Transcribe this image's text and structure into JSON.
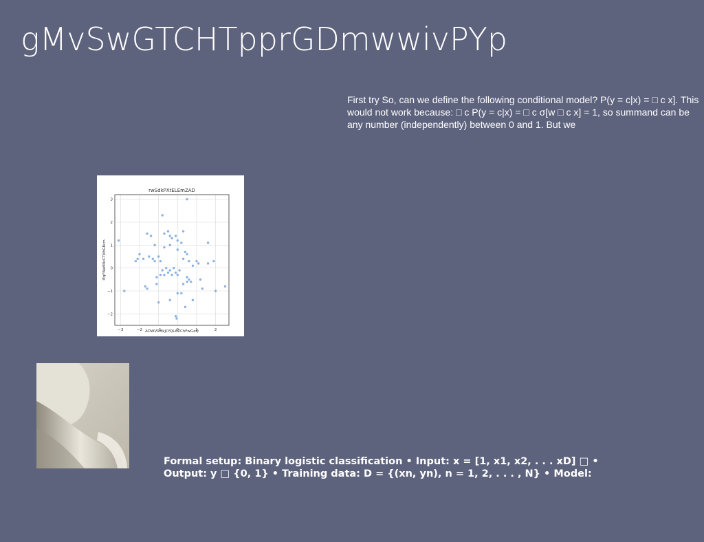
{
  "slide": {
    "title": "gMvSwGTCHTpprGDmwwivPYp",
    "paragraph_right": "First try So, can we define the following conditional model? P(y = c|x) = □ c x]. This would not work because: □ c P(y = c|x) = □ c σ[w □ c x] = 1, so summand can be any number (independently) between 0 and 1. But we",
    "paragraph_bottom": "Formal setup: Binary logistic classification • Input: x = [1, x1, x2, . . . xD] □ • Output: y □ {0, 1} • Training data: D = {(xn, yn), n = 1, 2, . . . , N} • Model:"
  },
  "chart_data": {
    "type": "scatter",
    "title": "rwSdkPXtELEmZAD",
    "xlabel": "ADWVvMkJCfQLAZChFwGoQ",
    "ylabel": "IEqYWaMNxCTWhGBcm",
    "xlim": [
      -3.3,
      2.7
    ],
    "ylim": [
      -2.5,
      3.2
    ],
    "xticks": [
      -3,
      -2,
      -1,
      0,
      1,
      2
    ],
    "yticks": [
      -2,
      -1,
      0,
      1,
      2,
      3
    ],
    "grid": true,
    "color": "#6f9fdc",
    "points": [
      [
        0.5,
        3.0
      ],
      [
        -0.8,
        2.3
      ],
      [
        -1.6,
        1.5
      ],
      [
        -1.4,
        1.4
      ],
      [
        -0.7,
        1.5
      ],
      [
        -0.5,
        1.6
      ],
      [
        -0.4,
        1.4
      ],
      [
        -0.3,
        1.3
      ],
      [
        -0.1,
        1.4
      ],
      [
        0.3,
        1.6
      ],
      [
        0.0,
        1.2
      ],
      [
        0.2,
        1.1
      ],
      [
        1.6,
        1.1
      ],
      [
        -3.1,
        1.2
      ],
      [
        -1.2,
        1.0
      ],
      [
        -0.7,
        0.9
      ],
      [
        -0.4,
        1.0
      ],
      [
        0.0,
        0.8
      ],
      [
        0.4,
        0.7
      ],
      [
        0.5,
        0.6
      ],
      [
        -2.0,
        0.6
      ],
      [
        -1.5,
        0.5
      ],
      [
        -2.1,
        0.4
      ],
      [
        -2.2,
        0.3
      ],
      [
        -1.8,
        0.4
      ],
      [
        -1.3,
        0.4
      ],
      [
        -1.0,
        0.5
      ],
      [
        -1.2,
        0.3
      ],
      [
        -0.9,
        0.3
      ],
      [
        0.3,
        0.4
      ],
      [
        0.6,
        0.3
      ],
      [
        1.0,
        0.3
      ],
      [
        1.1,
        0.2
      ],
      [
        1.6,
        0.2
      ],
      [
        1.9,
        0.3
      ],
      [
        0.8,
        0.1
      ],
      [
        -0.6,
        0.0
      ],
      [
        -0.8,
        -0.1
      ],
      [
        -0.4,
        -0.1
      ],
      [
        -0.2,
        0.0
      ],
      [
        -0.1,
        -0.2
      ],
      [
        0.1,
        -0.1
      ],
      [
        -0.9,
        -0.3
      ],
      [
        -1.1,
        -0.4
      ],
      [
        -0.7,
        -0.3
      ],
      [
        -0.5,
        -0.2
      ],
      [
        -0.3,
        -0.3
      ],
      [
        0.0,
        -0.3
      ],
      [
        0.5,
        -0.4
      ],
      [
        0.6,
        -0.5
      ],
      [
        0.7,
        -0.6
      ],
      [
        1.2,
        -0.5
      ],
      [
        -1.7,
        -0.8
      ],
      [
        -1.6,
        -0.9
      ],
      [
        -1.1,
        -0.7
      ],
      [
        0.3,
        -0.7
      ],
      [
        0.5,
        -0.6
      ],
      [
        1.3,
        -0.9
      ],
      [
        -2.8,
        -1.0
      ],
      [
        0.0,
        -1.1
      ],
      [
        0.2,
        -1.1
      ],
      [
        2.0,
        -1.0
      ],
      [
        2.5,
        -0.8
      ],
      [
        -1.0,
        -1.5
      ],
      [
        -0.4,
        -1.4
      ],
      [
        0.8,
        -1.4
      ],
      [
        0.4,
        -1.7
      ],
      [
        -0.1,
        -2.1
      ],
      [
        -0.05,
        -2.2
      ]
    ]
  },
  "image": {
    "icon": "abstract-ceramic-sculpture",
    "colors": {
      "background": "#5e637d",
      "text": "#ffffff"
    }
  }
}
